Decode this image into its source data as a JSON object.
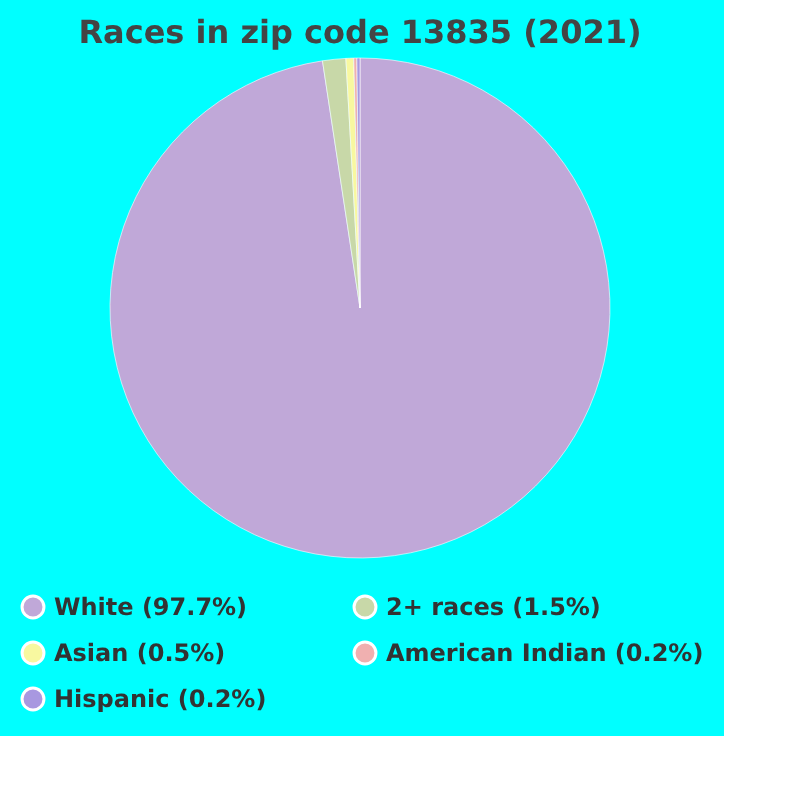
{
  "chart_data": {
    "type": "pie",
    "title": "Races in zip code 13835 (2021)",
    "categories": [
      "White (97.7%)",
      "2+ races (1.5%)",
      "Asian (0.5%)",
      "American Indian (0.2%)",
      "Hispanic (0.2%)"
    ],
    "values": [
      97.7,
      1.5,
      0.5,
      0.2,
      0.2
    ],
    "colors": [
      "#c0a8d8",
      "#c8d8a8",
      "#f8f8a0",
      "#f0b0b0",
      "#a898e0"
    ],
    "legend": "bottom"
  }
}
